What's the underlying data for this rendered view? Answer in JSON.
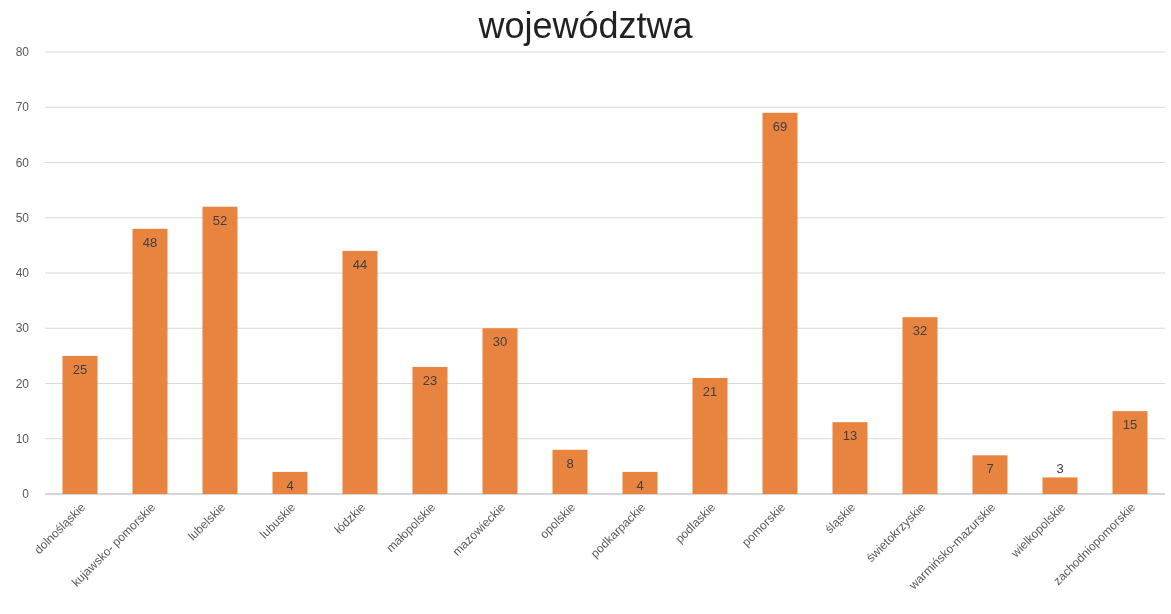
{
  "chart_data": {
    "type": "bar",
    "title": "województwa",
    "categories": [
      "dolnośląskie",
      "kujawsko- pomorskie",
      "lubelskie",
      "lubuskie",
      "łódzkie",
      "małopolskie",
      "mazowieckie",
      "opolskie",
      "podkarpackie",
      "podlaskie",
      "pomorskie",
      "śląskie",
      "świetokrzyskie",
      "warmińsko-mazurskie",
      "wielkopolskie",
      "zachodniopomorskie"
    ],
    "values": [
      25,
      48,
      52,
      4,
      44,
      23,
      30,
      8,
      4,
      21,
      69,
      13,
      32,
      7,
      3,
      15
    ],
    "color": "#e8843f",
    "ylim": [
      0,
      80
    ],
    "yticks": [
      0,
      10,
      20,
      30,
      40,
      50,
      60,
      70,
      80
    ],
    "grid": "y",
    "data_labels": true
  }
}
